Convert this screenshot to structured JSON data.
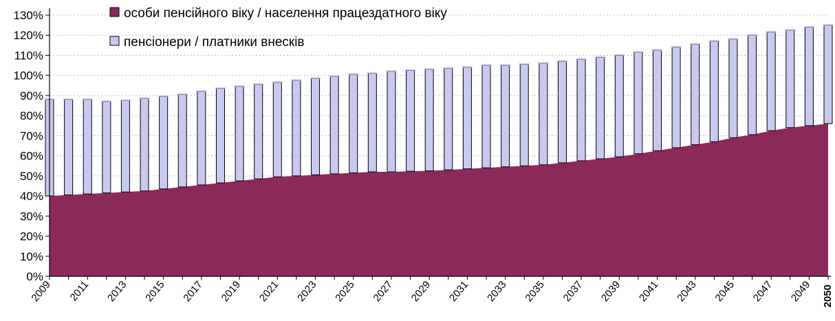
{
  "chart_data": {
    "type": "bar",
    "subtype": "overlapping columns with filled area",
    "x": [
      2009,
      2010,
      2011,
      2012,
      2013,
      2014,
      2015,
      2016,
      2017,
      2018,
      2019,
      2020,
      2021,
      2022,
      2023,
      2024,
      2025,
      2026,
      2027,
      2028,
      2029,
      2030,
      2031,
      2032,
      2033,
      2034,
      2035,
      2036,
      2037,
      2038,
      2039,
      2040,
      2041,
      2042,
      2043,
      2044,
      2045,
      2046,
      2047,
      2048,
      2049,
      2050
    ],
    "x_tick_labels": [
      "2009",
      "2011",
      "2013",
      "2015",
      "2017",
      "2019",
      "2021",
      "2023",
      "2025",
      "2027",
      "2029",
      "2031",
      "2033",
      "2035",
      "2037",
      "2039",
      "2041",
      "2043",
      "2045",
      "2047",
      "2049",
      "2050"
    ],
    "series": [
      {
        "name": "особи пенсійного віку / населення працездатного  віку",
        "color": "#8b2a5a",
        "display": "area",
        "values": [
          40,
          40.5,
          41,
          41.5,
          42,
          42.5,
          43.5,
          44.5,
          45.5,
          46.5,
          47.5,
          48.5,
          49.5,
          50,
          50.5,
          51,
          51.5,
          52,
          52,
          52.3,
          52.5,
          53,
          53.5,
          54,
          54.5,
          55,
          55.5,
          56.5,
          57.5,
          58.5,
          59.5,
          61,
          62.5,
          64,
          65.5,
          67,
          69,
          70.5,
          72.5,
          74,
          75,
          76
        ]
      },
      {
        "name": "пенсіонери / платники внесків",
        "color": "#c8c8f0",
        "display": "bar",
        "values": [
          88,
          88,
          88,
          87,
          87.5,
          88.5,
          89.5,
          90.5,
          92,
          93.5,
          94.5,
          95.5,
          96.5,
          97.5,
          98.5,
          99.5,
          100.5,
          101,
          102,
          102.5,
          103,
          103.5,
          104,
          105,
          105,
          105.5,
          106,
          107,
          108,
          109,
          110,
          111.5,
          112.5,
          114,
          115.5,
          117,
          118,
          120,
          121.5,
          122.5,
          124,
          125
        ]
      }
    ],
    "y_tick_labels": [
      "0%",
      "10%",
      "20%",
      "30%",
      "40%",
      "50%",
      "60%",
      "70%",
      "80%",
      "90%",
      "100%",
      "110%",
      "120%",
      "130%"
    ],
    "ylim": [
      0,
      130
    ],
    "y_unit": "%",
    "grid": "horizontal dotted",
    "legend_position": "top-left",
    "title": "",
    "xlabel": "",
    "ylabel": ""
  }
}
